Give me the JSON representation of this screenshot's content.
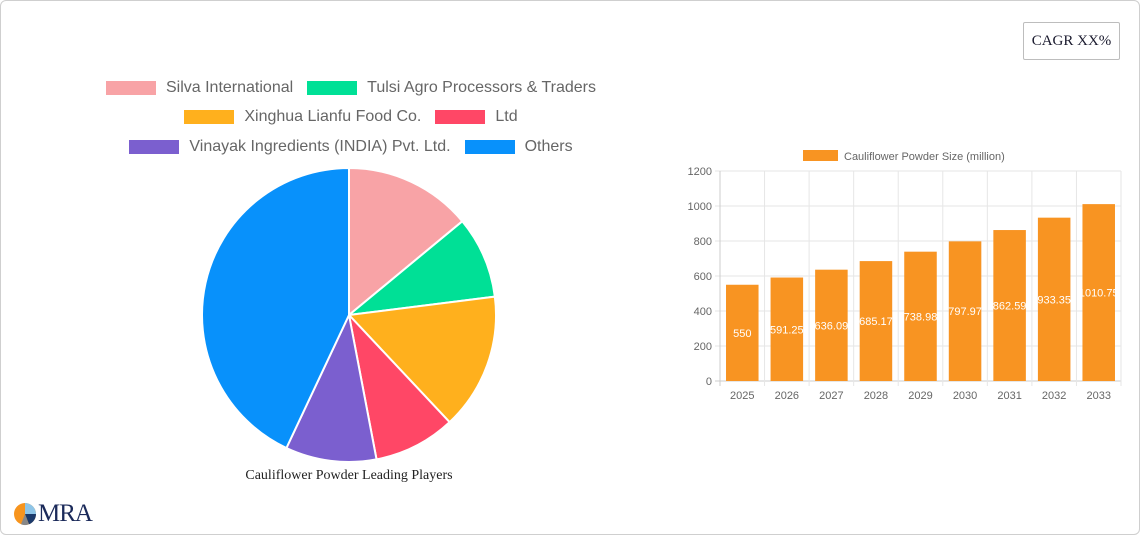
{
  "badge": {
    "cagr_label": "CAGR XX%"
  },
  "logo": {
    "text": "MRA"
  },
  "pie": {
    "title": "Cauliflower Powder Leading Players",
    "legend": [
      {
        "label": "Silva International",
        "color": "#f8a3a6"
      },
      {
        "label": "Tulsi Agro Processors & Traders",
        "color": "#00e096"
      },
      {
        "label": "Xinghua Lianfu Food Co.",
        "color": "#ffb01d"
      },
      {
        "label": "Ltd",
        "color": "#ff4766"
      },
      {
        "label": "Vinayak Ingredients (INDIA) Pvt. Ltd.",
        "color": "#7b5fcf"
      },
      {
        "label": "Others",
        "color": "#0891fb"
      }
    ]
  },
  "bar": {
    "legend_label": "Cauliflower Powder Size (million)",
    "bar_color": "#f89422"
  },
  "chart_data": [
    {
      "type": "pie",
      "title": "Cauliflower Powder Leading Players",
      "categories": [
        "Silva International",
        "Tulsi Agro Processors & Traders",
        "Xinghua Lianfu Food Co.",
        "Ltd",
        "Vinayak Ingredients (INDIA) Pvt. Ltd.",
        "Others"
      ],
      "values": [
        14,
        9,
        15,
        9,
        10,
        43
      ],
      "colors": [
        "#f8a3a6",
        "#00e096",
        "#ffb01d",
        "#ff4766",
        "#7b5fcf",
        "#0891fb"
      ],
      "legend_position": "top"
    },
    {
      "type": "bar",
      "title": "",
      "categories": [
        "2025",
        "2026",
        "2027",
        "2028",
        "2029",
        "2030",
        "2031",
        "2032",
        "2033"
      ],
      "series": [
        {
          "name": "Cauliflower Powder Size (million)",
          "values": [
            550,
            591.25,
            636.09,
            685.17,
            738.98,
            797.97,
            862.59,
            933.35,
            1010.75
          ]
        }
      ],
      "data_labels": [
        "550",
        "591.25",
        "636.09",
        "685.17",
        "738.98",
        "797.97",
        "862.59",
        "933.35",
        "1010.75"
      ],
      "xlabel": "",
      "ylabel": "",
      "ylim": [
        0,
        1200
      ],
      "yticks": [
        0,
        200,
        400,
        600,
        800,
        1000,
        1200
      ],
      "grid": true,
      "legend_position": "top"
    }
  ]
}
